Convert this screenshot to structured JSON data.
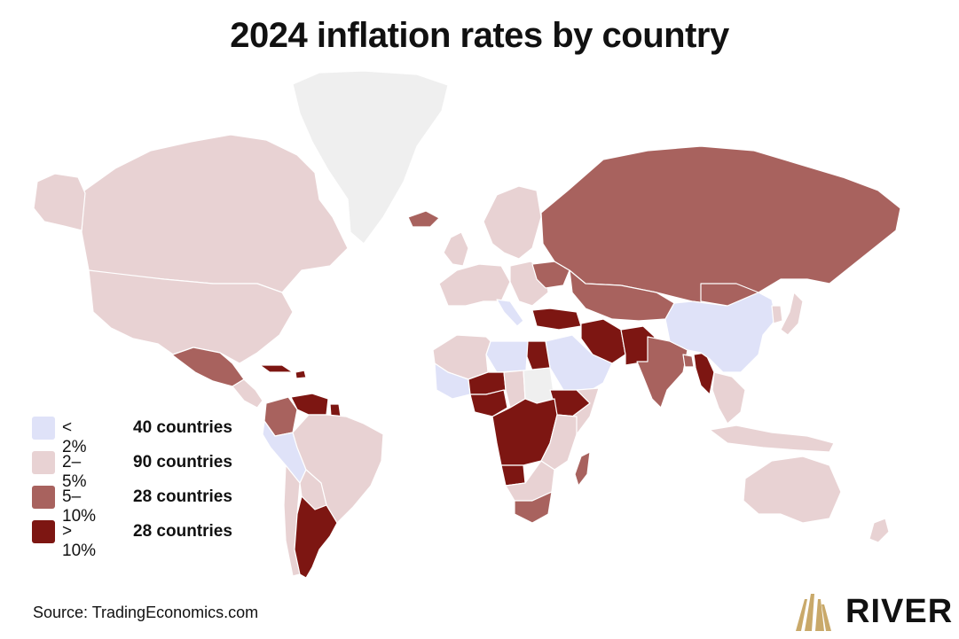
{
  "title": "2024 inflation rates by country",
  "colors": {
    "lt2": "#dfe2f8",
    "r2_5": "#e8d2d3",
    "r5_10": "#a8625e",
    "gt10": "#7d1612",
    "nodata": "#efefef",
    "brand_gold": "#c9a96a"
  },
  "legend": [
    {
      "range": "< 2%",
      "count": "40 countries",
      "color_key": "lt2"
    },
    {
      "range": "2–5%",
      "count": "90 countries",
      "color_key": "r2_5"
    },
    {
      "range": "5–10%",
      "count": "28 countries",
      "color_key": "r5_10"
    },
    {
      "range": "> 10%",
      "count": "28 countries",
      "color_key": "gt10"
    }
  ],
  "source": "Source: TradingEconomics.com",
  "brand": {
    "name": "RIVER",
    "icon": "river-logo-mountain-icon"
  },
  "map": {
    "regions": [
      {
        "name": "Greenland",
        "category": "nodata"
      },
      {
        "name": "Canada",
        "category": "r2_5"
      },
      {
        "name": "Alaska",
        "category": "r2_5"
      },
      {
        "name": "United States",
        "category": "r2_5"
      },
      {
        "name": "Mexico",
        "category": "r5_10"
      },
      {
        "name": "Central America",
        "category": "r2_5"
      },
      {
        "name": "Cuba",
        "category": "gt10"
      },
      {
        "name": "Haiti",
        "category": "gt10"
      },
      {
        "name": "Colombia",
        "category": "r5_10"
      },
      {
        "name": "Venezuela",
        "category": "gt10"
      },
      {
        "name": "Suriname",
        "category": "gt10"
      },
      {
        "name": "Ecuador and Peru",
        "category": "lt2"
      },
      {
        "name": "Brazil",
        "category": "r2_5"
      },
      {
        "name": "Bolivia and Paraguay",
        "category": "r2_5"
      },
      {
        "name": "Chile",
        "category": "r2_5"
      },
      {
        "name": "Argentina",
        "category": "gt10"
      },
      {
        "name": "Iceland",
        "category": "r5_10"
      },
      {
        "name": "Norway, Sweden and Finland",
        "category": "r2_5"
      },
      {
        "name": "United Kingdom and Ireland",
        "category": "r2_5"
      },
      {
        "name": "Western Europe",
        "category": "r2_5"
      },
      {
        "name": "Italy",
        "category": "lt2"
      },
      {
        "name": "Eastern Europe",
        "category": "r2_5"
      },
      {
        "name": "Ukraine",
        "category": "r5_10"
      },
      {
        "name": "Russia",
        "category": "r5_10"
      },
      {
        "name": "Kazakhstan and Central Asia",
        "category": "r5_10"
      },
      {
        "name": "Turkey",
        "category": "gt10"
      },
      {
        "name": "Iran",
        "category": "gt10"
      },
      {
        "name": "Pakistan",
        "category": "gt10"
      },
      {
        "name": "India",
        "category": "r5_10"
      },
      {
        "name": "Bangladesh",
        "category": "r5_10"
      },
      {
        "name": "Myanmar",
        "category": "gt10"
      },
      {
        "name": "China",
        "category": "lt2"
      },
      {
        "name": "Mongolia",
        "category": "r5_10"
      },
      {
        "name": "Japan",
        "category": "r2_5"
      },
      {
        "name": "Korea",
        "category": "r2_5"
      },
      {
        "name": "Southeast Asia",
        "category": "r2_5"
      },
      {
        "name": "Indonesia",
        "category": "r2_5"
      },
      {
        "name": "Saudi Arabia and Gulf",
        "category": "lt2"
      },
      {
        "name": "Egypt",
        "category": "gt10"
      },
      {
        "name": "Libya",
        "category": "lt2"
      },
      {
        "name": "Morocco and Algeria",
        "category": "r2_5"
      },
      {
        "name": "Mali",
        "category": "lt2"
      },
      {
        "name": "Niger",
        "category": "gt10"
      },
      {
        "name": "Nigeria",
        "category": "gt10"
      },
      {
        "name": "Chad",
        "category": "r2_5"
      },
      {
        "name": "Sudan",
        "category": "nodata"
      },
      {
        "name": "Ethiopia",
        "category": "gt10"
      },
      {
        "name": "Somalia",
        "category": "r2_5"
      },
      {
        "name": "Central Africa",
        "category": "gt10"
      },
      {
        "name": "Kenya and Tanzania",
        "category": "r2_5"
      },
      {
        "name": "Angola",
        "category": "gt10"
      },
      {
        "name": "Namibia and Botswana",
        "category": "r2_5"
      },
      {
        "name": "South Africa",
        "category": "r5_10"
      },
      {
        "name": "Madagascar",
        "category": "r5_10"
      },
      {
        "name": "Australia",
        "category": "r2_5"
      },
      {
        "name": "New Zealand",
        "category": "r2_5"
      }
    ]
  }
}
